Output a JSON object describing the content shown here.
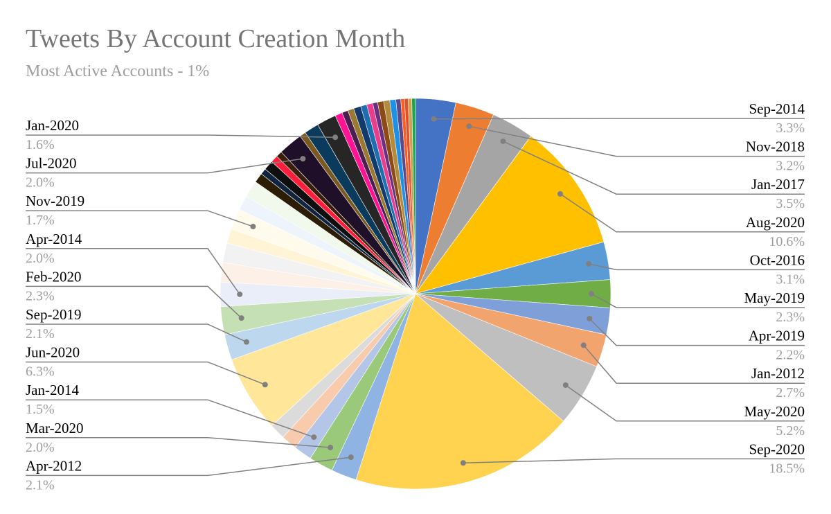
{
  "chart_data": {
    "type": "pie",
    "title": "Tweets By Account Creation Month",
    "subtitle": "Most Active Accounts - 1%",
    "slices": [
      {
        "label": "Sep-2014",
        "value": 3.3,
        "color": "#4472c4"
      },
      {
        "label": "Nov-2018",
        "value": 3.2,
        "color": "#ed7d31"
      },
      {
        "label": "Jan-2017",
        "value": 3.5,
        "color": "#a5a5a5"
      },
      {
        "label": "Aug-2020",
        "value": 10.6,
        "color": "#ffc000"
      },
      {
        "label": "Oct-2016",
        "value": 3.1,
        "color": "#5b9bd5"
      },
      {
        "label": "May-2019",
        "value": 2.3,
        "color": "#70ad47"
      },
      {
        "label": "Apr-2019",
        "value": 2.2,
        "color": "#7f9fd9"
      },
      {
        "label": "Jan-2012",
        "value": 2.7,
        "color": "#f2a46f"
      },
      {
        "label": "May-2020",
        "value": 5.2,
        "color": "#bfbfbf"
      },
      {
        "label": "Sep-2020",
        "value": 18.5,
        "color": "#ffd34f"
      },
      {
        "label": "Apr-2012",
        "value": 2.1,
        "color": "#8fb4e3"
      },
      {
        "label": "Mar-2020",
        "value": 2.0,
        "color": "#9bc97a"
      },
      {
        "label": "Jan-2014",
        "value": 1.5,
        "color": "#b4c6e7"
      },
      {
        "value": 1.3,
        "color": "#f8cbad"
      },
      {
        "value": 1.3,
        "color": "#dbdbdb"
      },
      {
        "label": "Jun-2020",
        "value": 6.3,
        "color": "#ffe699"
      },
      {
        "label": "Sep-2019",
        "value": 2.1,
        "color": "#bdd7ee"
      },
      {
        "label": "Feb-2020",
        "value": 2.3,
        "color": "#c5e0b4"
      },
      {
        "label": "Apr-2014",
        "value": 2.0,
        "color": "#e9eef8"
      },
      {
        "value": 1.6,
        "color": "#fdf0e6"
      },
      {
        "value": 1.6,
        "color": "#f2f2f2"
      },
      {
        "value": 1.2,
        "color": "#fff5d6"
      },
      {
        "label": "Nov-2019",
        "value": 1.7,
        "color": "#fffbec"
      },
      {
        "value": 1.2,
        "color": "#eef4fb"
      },
      {
        "value": 1.4,
        "color": "#f1f8ec"
      },
      {
        "value": 0.8,
        "color": "#2b1e05"
      },
      {
        "value": 0.5,
        "color": "#10233f"
      },
      {
        "value": 0.8,
        "color": "#0f0f0f"
      },
      {
        "value": 0.6,
        "color": "#ff1f3d"
      },
      {
        "value": 0.5,
        "color": "#3a1f0a"
      },
      {
        "label": "Jul-2020",
        "value": 2.0,
        "color": "#1f0f29"
      },
      {
        "value": 0.5,
        "color": "#7a5a20"
      },
      {
        "value": 1.2,
        "color": "#0a3a5c"
      },
      {
        "label": "Jan-2020",
        "value": 1.6,
        "color": "#262626"
      },
      {
        "value": 0.6,
        "color": "#ff1493"
      },
      {
        "value": 0.5,
        "color": "#4b1e50"
      },
      {
        "value": 0.5,
        "color": "#9a7a30"
      },
      {
        "value": 0.6,
        "color": "#123a6a"
      },
      {
        "value": 0.5,
        "color": "#1d6fb0"
      },
      {
        "value": 0.5,
        "color": "#e83e8c"
      },
      {
        "value": 0.4,
        "color": "#6b2f7f"
      },
      {
        "value": 0.5,
        "color": "#8a4b16"
      },
      {
        "value": 0.5,
        "color": "#b48a3c"
      },
      {
        "value": 0.5,
        "color": "#1e90e6"
      },
      {
        "value": 0.4,
        "color": "#5b4a8a"
      },
      {
        "value": 0.3,
        "color": "#ff5a1f"
      },
      {
        "value": 0.3,
        "color": "#e0522b"
      },
      {
        "value": 0.3,
        "color": "#cfa050"
      },
      {
        "value": 0.3,
        "color": "#1aa64a"
      }
    ],
    "labels_right": [
      {
        "name": "Sep-2014",
        "pct": "3.3%"
      },
      {
        "name": "Nov-2018",
        "pct": "3.2%"
      },
      {
        "name": "Jan-2017",
        "pct": "3.5%"
      },
      {
        "name": "Aug-2020",
        "pct": "10.6%"
      },
      {
        "name": "Oct-2016",
        "pct": "3.1%"
      },
      {
        "name": "May-2019",
        "pct": "2.3%"
      },
      {
        "name": "Apr-2019",
        "pct": "2.2%"
      },
      {
        "name": "Jan-2012",
        "pct": "2.7%"
      },
      {
        "name": "May-2020",
        "pct": "5.2%"
      },
      {
        "name": "Sep-2020",
        "pct": "18.5%"
      }
    ],
    "labels_left": [
      {
        "name": "Jan-2020",
        "pct": "1.6%"
      },
      {
        "name": "Jul-2020",
        "pct": "2.0%"
      },
      {
        "name": "Nov-2019",
        "pct": "1.7%"
      },
      {
        "name": "Apr-2014",
        "pct": "2.0%"
      },
      {
        "name": "Feb-2020",
        "pct": "2.3%"
      },
      {
        "name": "Sep-2019",
        "pct": "2.1%"
      },
      {
        "name": "Jun-2020",
        "pct": "6.3%"
      },
      {
        "name": "Jan-2014",
        "pct": "1.5%"
      },
      {
        "name": "Mar-2020",
        "pct": "2.0%"
      },
      {
        "name": "Apr-2012",
        "pct": "2.1%"
      }
    ]
  }
}
